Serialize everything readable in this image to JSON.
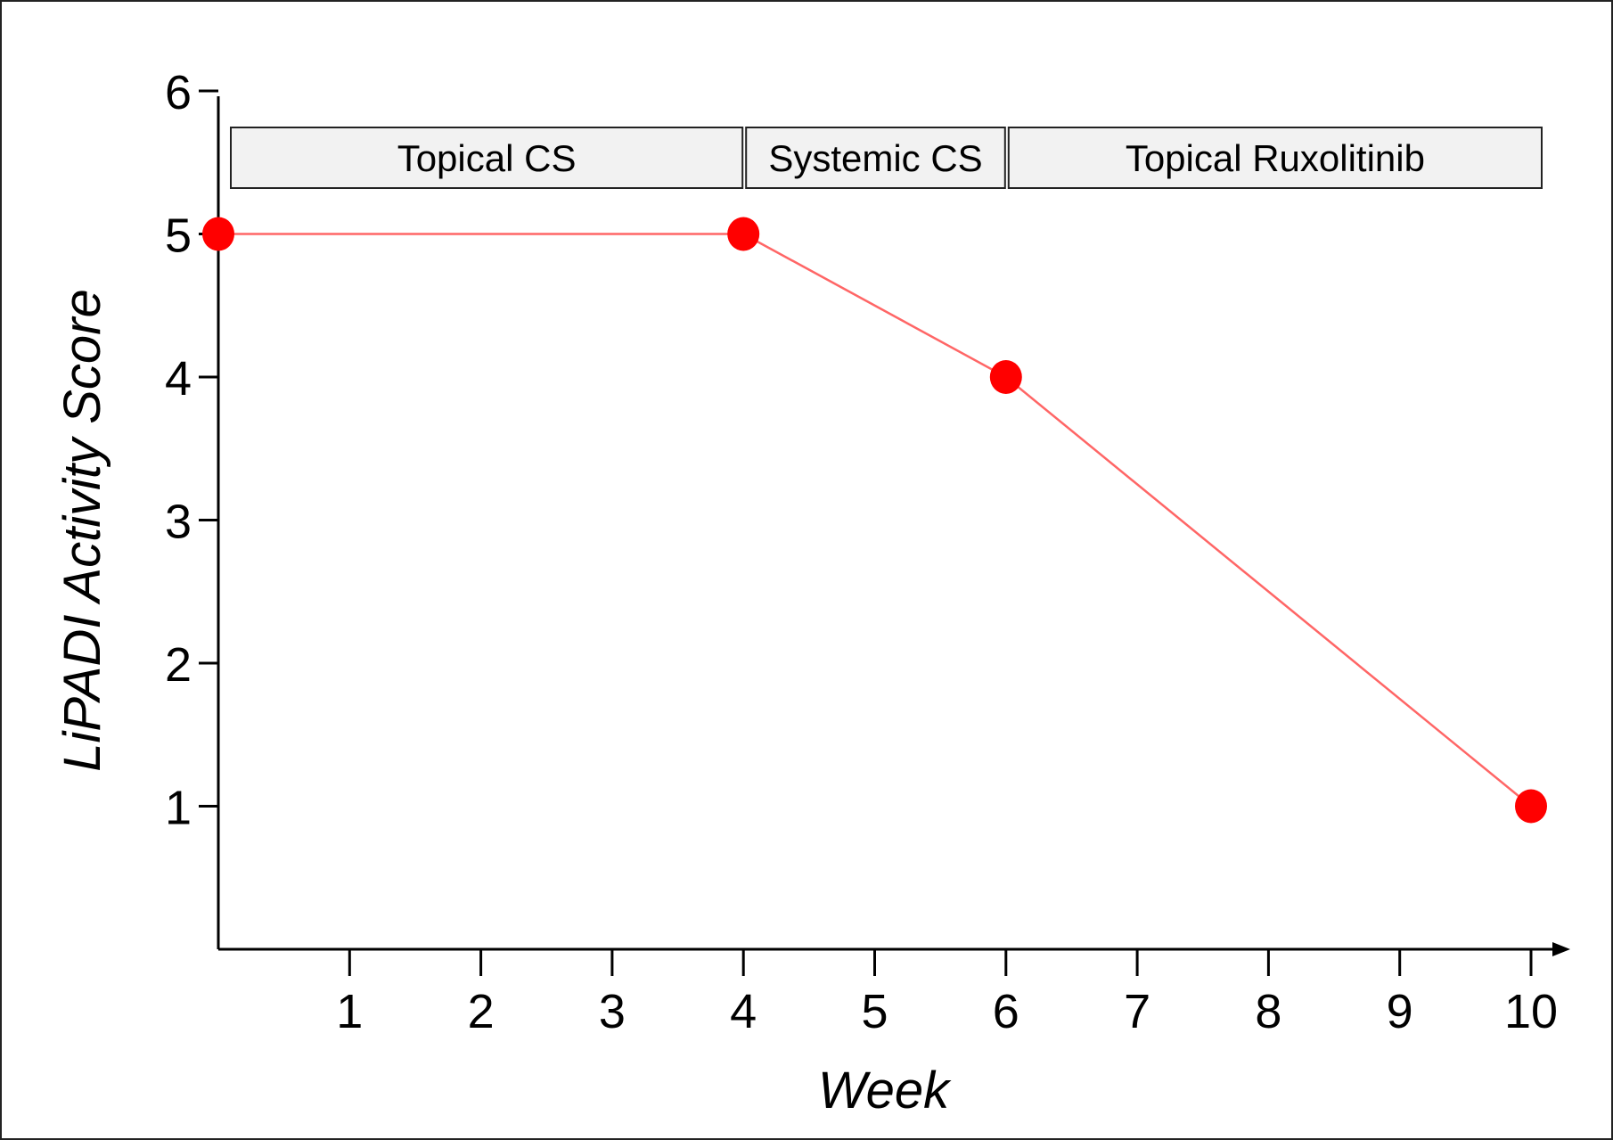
{
  "chart_data": {
    "type": "line",
    "title": "",
    "xlabel": "Week",
    "ylabel": "LiPADI Activity Score",
    "xlim": [
      0,
      10
    ],
    "ylim": [
      0,
      6
    ],
    "x_ticks": [
      1,
      2,
      3,
      4,
      5,
      6,
      7,
      8,
      9,
      10
    ],
    "y_ticks": [
      1,
      2,
      3,
      4,
      5,
      6
    ],
    "grid": false,
    "series": [
      {
        "color": "#ff0000",
        "points": [
          {
            "x": 0,
            "y": 5
          },
          {
            "x": 4,
            "y": 5
          },
          {
            "x": 6,
            "y": 4
          },
          {
            "x": 10,
            "y": 1
          }
        ]
      }
    ],
    "phases": [
      {
        "label": "Topical CS",
        "start": 0,
        "end": 4
      },
      {
        "label": "Systemic CS",
        "start": 4,
        "end": 6
      },
      {
        "label": "Topical Ruxolitinib",
        "start": 6,
        "end": 10
      }
    ],
    "colors": {
      "line": "#ff6666",
      "marker": "#ff0000",
      "phase_fill": "#f2f2f2",
      "axis": "#000000"
    }
  }
}
